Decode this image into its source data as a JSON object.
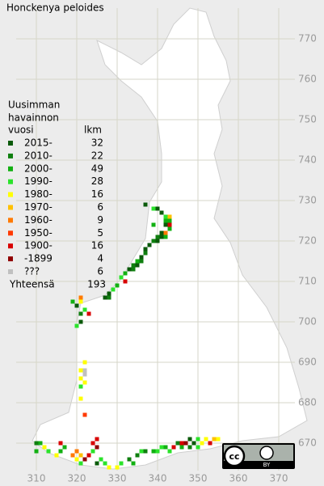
{
  "title": "Honckenya peloides",
  "legend": {
    "heading": [
      "Uusimman",
      "havainnon",
      "vuosi"
    ],
    "count_heading": "lkm",
    "items": [
      {
        "label": "2015-",
        "count": 32,
        "color": "#0a5a0a"
      },
      {
        "label": "2010-",
        "count": 22,
        "color": "#0f7f0f"
      },
      {
        "label": "2000-",
        "count": 49,
        "color": "#12b012"
      },
      {
        "label": "1990-",
        "count": 28,
        "color": "#2be32b"
      },
      {
        "label": "1980-",
        "count": 16,
        "color": "#ffff00"
      },
      {
        "label": "1970-",
        "count": 6,
        "color": "#ffc000"
      },
      {
        "label": "1960-",
        "count": 9,
        "color": "#ff7a00"
      },
      {
        "label": "1950-",
        "count": 5,
        "color": "#ff3a00"
      },
      {
        "label": "1900-",
        "count": 16,
        "color": "#d80000"
      },
      {
        "label": "-1899",
        "count": 4,
        "color": "#900000"
      },
      {
        "label": "???",
        "count": 6,
        "color": "#c0c0c0"
      }
    ],
    "total_label": "Yhteensä",
    "total": 193
  },
  "x_ticks": [
    310,
    320,
    330,
    340,
    350,
    360,
    370
  ],
  "y_ticks": [
    770,
    760,
    750,
    740,
    730,
    720,
    710,
    700,
    690,
    680,
    670
  ],
  "license": {
    "cc": "cc",
    "by": "BY"
  },
  "squares": [
    [
      337,
      729,
      0
    ],
    [
      339,
      728,
      3
    ],
    [
      340,
      728,
      0
    ],
    [
      341,
      727,
      0
    ],
    [
      342,
      726,
      3
    ],
    [
      343,
      726,
      5
    ],
    [
      342,
      725,
      2
    ],
    [
      343,
      725,
      2
    ],
    [
      339,
      724,
      2
    ],
    [
      342,
      724,
      0
    ],
    [
      343,
      724,
      8
    ],
    [
      343,
      723,
      2
    ],
    [
      341,
      722,
      0
    ],
    [
      342,
      722,
      6
    ],
    [
      342,
      721,
      2
    ],
    [
      340,
      721,
      1
    ],
    [
      341,
      721,
      0
    ],
    [
      339,
      720,
      1
    ],
    [
      340,
      720,
      0
    ],
    [
      338,
      719,
      0
    ],
    [
      337,
      718,
      0
    ],
    [
      337,
      717,
      1
    ],
    [
      336,
      716,
      0
    ],
    [
      335,
      715,
      2
    ],
    [
      336,
      715,
      1
    ],
    [
      334,
      714,
      1
    ],
    [
      335,
      714,
      0
    ],
    [
      333,
      713,
      0
    ],
    [
      334,
      713,
      1
    ],
    [
      332,
      712,
      2
    ],
    [
      331,
      711,
      3
    ],
    [
      332,
      710,
      8
    ],
    [
      330,
      709,
      2
    ],
    [
      329,
      708,
      3
    ],
    [
      328,
      707,
      0
    ],
    [
      327,
      706,
      0
    ],
    [
      328,
      706,
      1
    ],
    [
      319,
      705,
      2
    ],
    [
      320,
      704,
      0
    ],
    [
      321,
      705,
      4
    ],
    [
      321,
      706,
      6
    ],
    [
      322,
      703,
      3
    ],
    [
      323,
      702,
      8
    ],
    [
      321,
      702,
      1
    ],
    [
      320,
      699,
      3
    ],
    [
      321,
      700,
      0
    ],
    [
      322,
      690,
      4
    ],
    [
      321,
      688,
      4
    ],
    [
      322,
      688,
      10
    ],
    [
      322,
      687,
      10
    ],
    [
      321,
      686,
      4
    ],
    [
      322,
      685,
      4
    ],
    [
      321,
      684,
      3
    ],
    [
      321,
      681,
      4
    ],
    [
      322,
      677,
      7
    ],
    [
      310,
      670,
      1
    ],
    [
      311,
      670,
      2
    ],
    [
      312,
      669,
      4
    ],
    [
      310,
      668,
      2
    ],
    [
      313,
      668,
      3
    ],
    [
      316,
      670,
      8
    ],
    [
      317,
      669,
      2
    ],
    [
      316,
      668,
      2
    ],
    [
      315,
      667,
      4
    ],
    [
      319,
      667,
      6
    ],
    [
      320,
      668,
      6
    ],
    [
      320,
      666,
      4
    ],
    [
      321,
      667,
      5
    ],
    [
      321,
      665,
      3
    ],
    [
      322,
      666,
      9
    ],
    [
      323,
      667,
      8
    ],
    [
      324,
      670,
      8
    ],
    [
      325,
      671,
      8
    ],
    [
      325,
      669,
      9
    ],
    [
      324,
      668,
      3
    ],
    [
      326,
      666,
      3
    ],
    [
      325,
      665,
      0
    ],
    [
      327,
      665,
      3
    ],
    [
      328,
      664,
      4
    ],
    [
      330,
      664,
      4
    ],
    [
      331,
      665,
      3
    ],
    [
      333,
      666,
      1
    ],
    [
      334,
      665,
      2
    ],
    [
      335,
      667,
      1
    ],
    [
      336,
      668,
      3
    ],
    [
      337,
      668,
      1
    ],
    [
      339,
      668,
      2
    ],
    [
      340,
      668,
      3
    ],
    [
      341,
      669,
      3
    ],
    [
      342,
      669,
      2
    ],
    [
      343,
      668,
      3
    ],
    [
      344,
      669,
      8
    ],
    [
      345,
      670,
      1
    ],
    [
      346,
      670,
      8
    ],
    [
      347,
      670,
      9
    ],
    [
      348,
      669,
      1
    ],
    [
      349,
      670,
      0
    ],
    [
      350,
      671,
      3
    ],
    [
      351,
      670,
      4
    ],
    [
      352,
      671,
      4
    ],
    [
      353,
      670,
      8
    ],
    [
      354,
      671,
      5
    ],
    [
      355,
      671,
      4
    ],
    [
      346,
      669,
      2
    ],
    [
      348,
      671,
      0
    ],
    [
      350,
      669,
      3
    ]
  ]
}
